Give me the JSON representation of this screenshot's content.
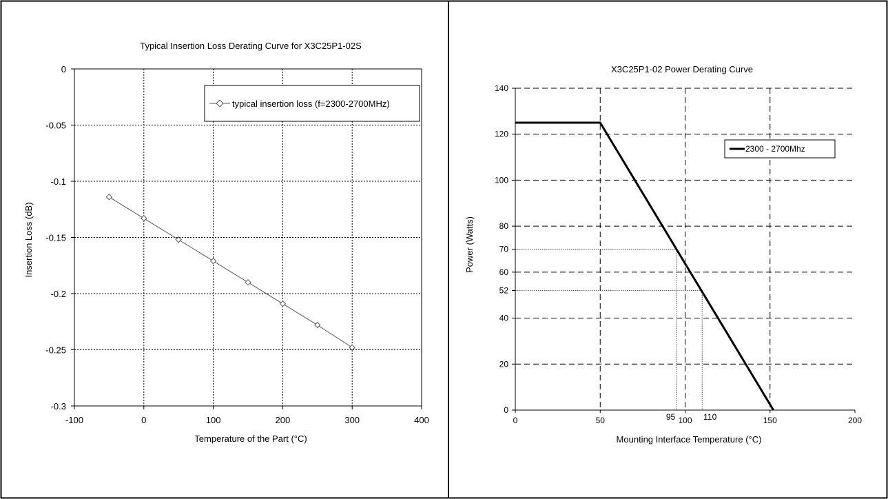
{
  "chart_data": [
    {
      "type": "line",
      "title": "Typical Insertion Loss Derating Curve for X3C25P1-02S",
      "xlabel": "Temperature of the Part  (°C)",
      "ylabel": "Insertion Loss (dB)",
      "xlim": [
        -100,
        400
      ],
      "ylim": [
        -0.3,
        0
      ],
      "xticks": [
        -100,
        0,
        100,
        200,
        300,
        400
      ],
      "xtick_labels": [
        "-100",
        "0",
        "100",
        "200",
        "300",
        "400"
      ],
      "yticks": [
        0,
        -0.05,
        -0.1,
        -0.15,
        -0.2,
        -0.25,
        -0.3
      ],
      "ytick_labels": [
        "0",
        "-0.05",
        "-0.1",
        "-0.15",
        "-0.2",
        "-0.25",
        "-0.3"
      ],
      "grid": true,
      "legend_position": "top-right",
      "series": [
        {
          "name": "typical insertion loss (f=2300-2700MHz)",
          "color": "#555555",
          "marker": "diamond",
          "x": [
            -50,
            0,
            50,
            100,
            150,
            200,
            250,
            300
          ],
          "y": [
            -0.114,
            -0.133,
            -0.152,
            -0.171,
            -0.19,
            -0.209,
            -0.228,
            -0.248
          ]
        }
      ]
    },
    {
      "type": "line",
      "title": "X3C25P1-02 Power Derating Curve",
      "xlabel": "Mounting Interface Temperature (°C)",
      "ylabel": "Power (Watts)",
      "xlim": [
        0,
        200
      ],
      "ylim": [
        0,
        140
      ],
      "xticks": [
        0,
        50,
        100,
        150,
        200
      ],
      "xtick_labels": [
        "0",
        "50",
        "100",
        "150",
        "200"
      ],
      "yticks": [
        0,
        20,
        40,
        52,
        60,
        70,
        80,
        100,
        120,
        140
      ],
      "ytick_labels": [
        "0",
        "20",
        "40",
        "52",
        "60",
        "70",
        "80",
        "100",
        "120",
        "140"
      ],
      "grid": true,
      "legend_position": "top-right",
      "series": [
        {
          "name": "2300 - 2700Mhz",
          "color": "#000000",
          "x": [
            0,
            50,
            152
          ],
          "y": [
            125,
            125,
            0
          ]
        }
      ],
      "annotations": [
        {
          "label": "95",
          "x": 95,
          "y": 70
        },
        {
          "label": "110",
          "x": 110,
          "y": 52
        }
      ]
    }
  ]
}
